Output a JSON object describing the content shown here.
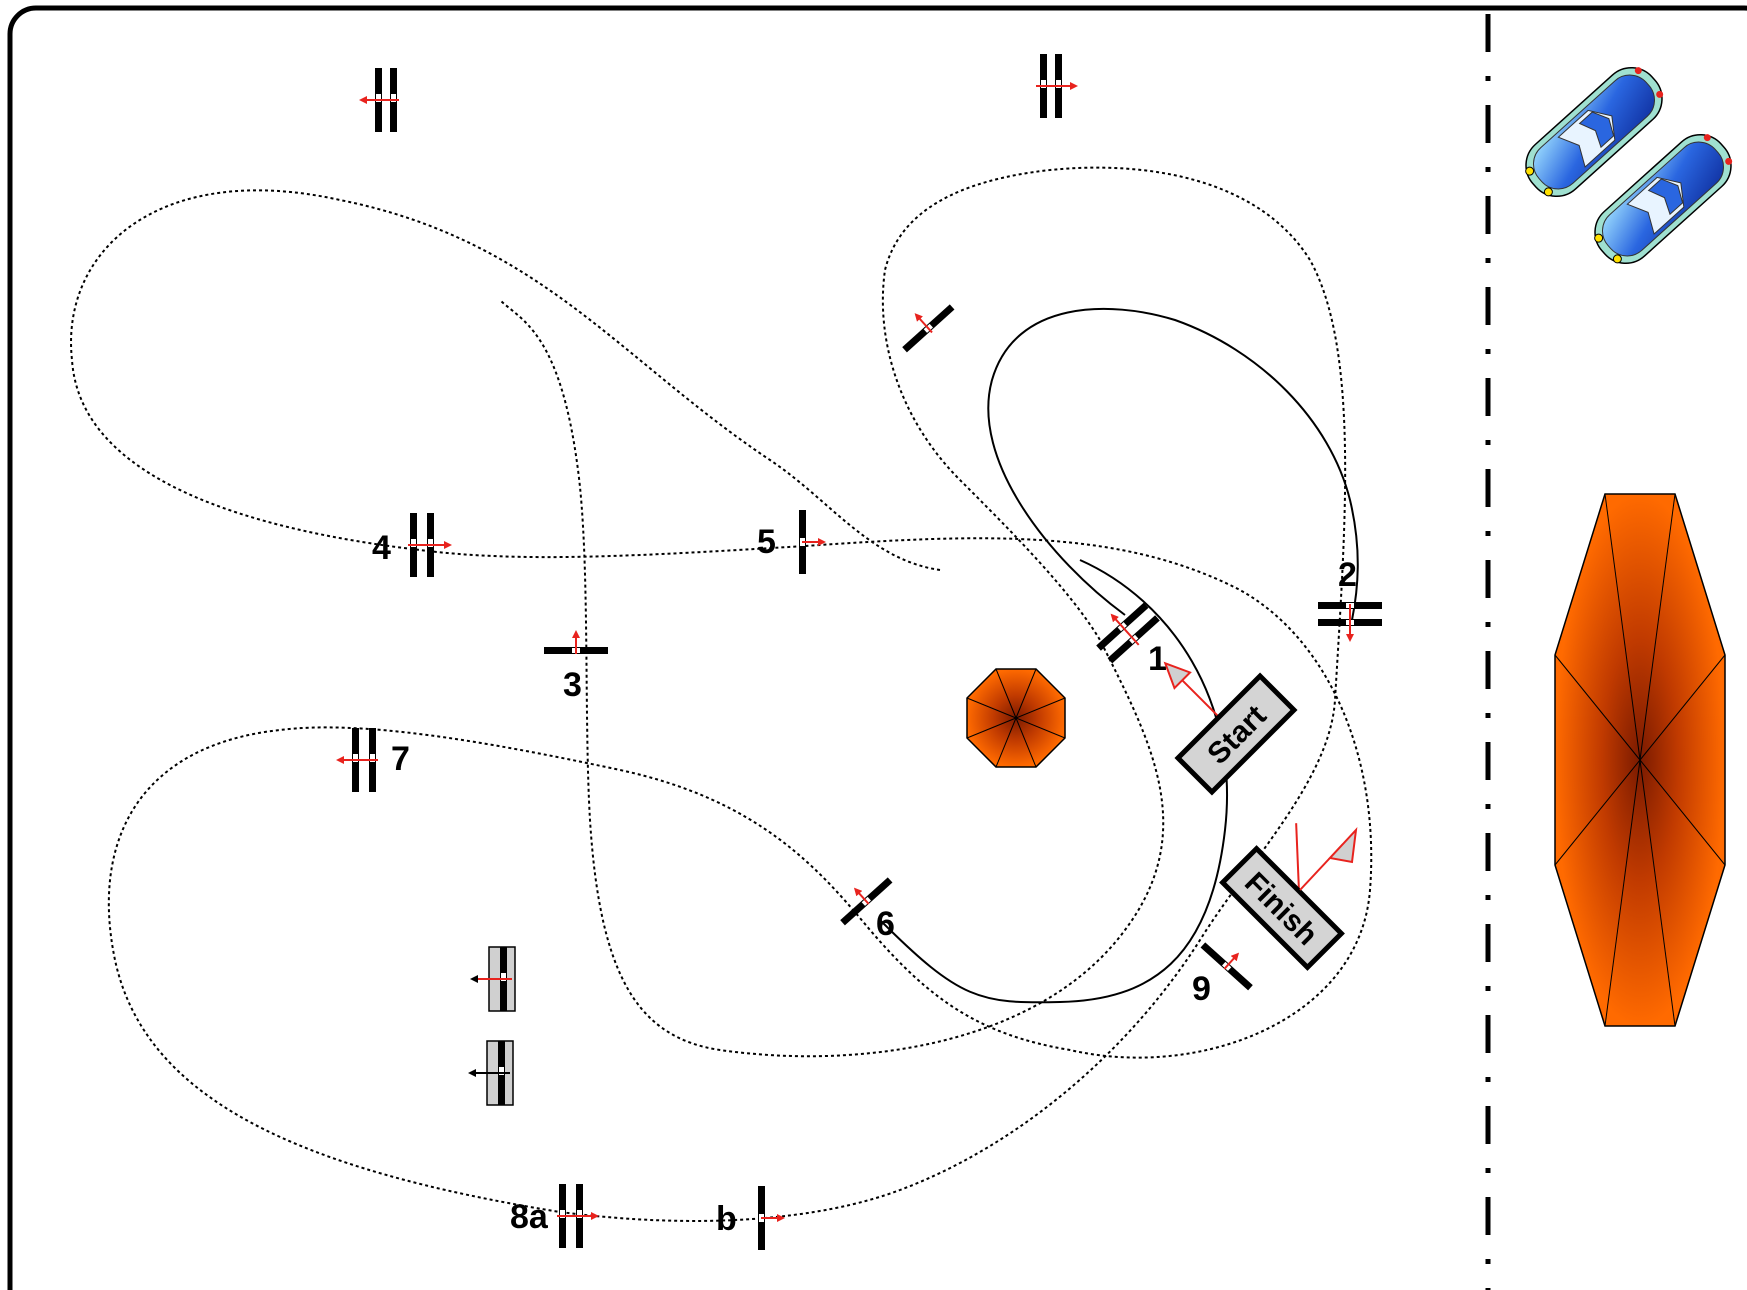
{
  "diagram": {
    "gate_labels": {
      "g1": "1",
      "g2": "2",
      "g3": "3",
      "g4": "4",
      "g5": "5",
      "g6": "6",
      "g7": "7",
      "g8a": "8a",
      "gb": "b",
      "g9": "9"
    },
    "signs": {
      "start": "Start",
      "finish": "Finish"
    },
    "colors": {
      "arrow": "#e8231e",
      "tent": "#ff6a00",
      "tent_center": "#7a1a00",
      "car_body": "#2a66e0",
      "car_edge": "#9fe0d0",
      "sign_fill": "#d4d4d4",
      "line": "#000000"
    },
    "icons": [
      "gate-icon",
      "pylon-gate-icon",
      "umbrella-icon",
      "tent-icon",
      "car-icon",
      "start-sign",
      "finish-sign"
    ]
  }
}
